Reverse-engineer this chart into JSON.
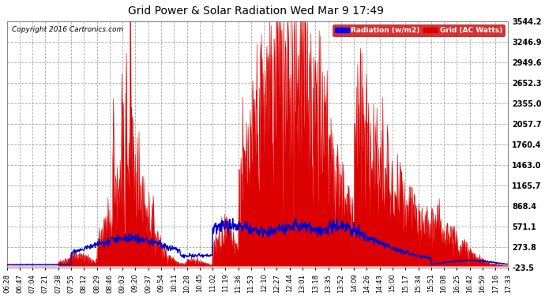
{
  "title": "Grid Power & Solar Radiation Wed Mar 9 17:49",
  "copyright": "Copyright 2016 Cartronics.com",
  "legend_radiation": "Radiation (w/m2)",
  "legend_grid": "Grid (AC Watts)",
  "background_color": "#ffffff",
  "plot_bg_color": "#ffffff",
  "grid_color": "#aaaaaa",
  "radiation_color": "#dd0000",
  "grid_ac_color": "#0000cc",
  "yticks": [
    -23.5,
    273.8,
    571.1,
    868.4,
    1165.7,
    1463.0,
    1760.4,
    2057.7,
    2355.0,
    2652.3,
    2949.6,
    3246.9,
    3544.2
  ],
  "ymin": -23.5,
  "ymax": 3544.2,
  "xtick_labels": [
    "06:28",
    "06:47",
    "07:04",
    "07:21",
    "07:38",
    "07:55",
    "08:12",
    "08:29",
    "08:46",
    "09:03",
    "09:20",
    "09:37",
    "09:54",
    "10:11",
    "10:28",
    "10:45",
    "11:02",
    "11:19",
    "11:36",
    "11:53",
    "12:10",
    "12:27",
    "12:44",
    "13:01",
    "13:18",
    "13:35",
    "13:52",
    "14:09",
    "14:26",
    "14:43",
    "15:00",
    "15:17",
    "15:34",
    "15:51",
    "16:08",
    "16:25",
    "16:42",
    "16:59",
    "17:16",
    "17:33"
  ]
}
